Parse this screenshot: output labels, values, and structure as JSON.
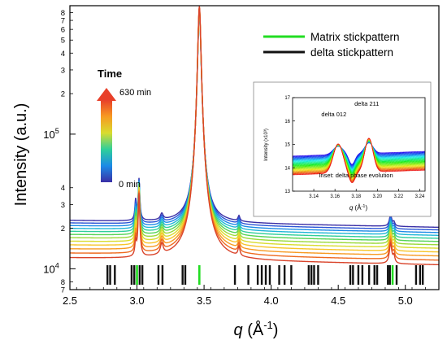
{
  "chart_data": [
    {
      "type": "line",
      "xlabel_italic": "q",
      "xlabel_rest": " (Å",
      "xlabel_sup": "-1",
      "xlabel_close": ")",
      "ylabel": "Intensity (a.u.)",
      "xlim": [
        2.5,
        5.25
      ],
      "ylim": [
        7000,
        900000
      ],
      "yscale": "log",
      "x_ticks": [
        "2.5",
        "3.0",
        "3.5",
        "4.0",
        "4.5",
        "5.0"
      ],
      "x_tick_values": [
        2.5,
        3.0,
        3.5,
        4.0,
        4.5,
        5.0
      ],
      "y_major_labels": [
        {
          "value": 10000,
          "mantissa": "10",
          "exp": "4"
        },
        {
          "value": 100000,
          "mantissa": "10",
          "exp": "5"
        }
      ],
      "y_minor_labels": [
        {
          "value": 7000,
          "label": "7"
        },
        {
          "value": 8000,
          "label": "8"
        },
        {
          "value": 20000,
          "label": "2"
        },
        {
          "value": 30000,
          "label": "3"
        },
        {
          "value": 40000,
          "label": "4"
        },
        {
          "value": 200000,
          "label": "2"
        },
        {
          "value": 300000,
          "label": "3"
        },
        {
          "value": 400000,
          "label": "4"
        },
        {
          "value": 500000,
          "label": "5"
        },
        {
          "value": 600000,
          "label": "6"
        },
        {
          "value": 700000,
          "label": "7"
        },
        {
          "value": 800000,
          "label": "8"
        }
      ],
      "series_count": 12,
      "series_colors": [
        "#3a2fa6",
        "#2b56d6",
        "#1c8be6",
        "#1fb6d6",
        "#2fcf9a",
        "#55d455",
        "#9bd93a",
        "#d9dc2f",
        "#f7c52a",
        "#f79a22",
        "#ee6a1f",
        "#d9432a"
      ],
      "baseline": 12000,
      "baseline_spread": 0.9,
      "peaks": [
        {
          "q": 2.99,
          "amp": 6000,
          "width": 0.006
        },
        {
          "q": 3.015,
          "amp": 24000,
          "width": 0.006
        },
        {
          "q": 3.185,
          "amp": 2600,
          "width": 0.012
        },
        {
          "q": 3.465,
          "amp": 880000,
          "width": 0.011
        },
        {
          "q": 3.76,
          "amp": 2200,
          "width": 0.008
        },
        {
          "q": 4.89,
          "amp": 4500,
          "width": 0.01
        },
        {
          "q": 4.915,
          "amp": 1500,
          "width": 0.008
        }
      ],
      "matrix_sticks": [
        3.0,
        3.465,
        4.905
      ],
      "delta_sticks": [
        2.78,
        2.8,
        2.835,
        2.96,
        2.98,
        3.02,
        3.04,
        3.16,
        3.19,
        3.34,
        3.36,
        3.73,
        3.83,
        3.9,
        3.93,
        3.96,
        3.99,
        4.06,
        4.1,
        4.15,
        4.28,
        4.3,
        4.32,
        4.35,
        4.59,
        4.61,
        4.65,
        4.68,
        4.73,
        4.77,
        4.79,
        4.87,
        4.885,
        4.935,
        5.08,
        5.11,
        5.13
      ],
      "legend": [
        {
          "name": "Matrix stickpattern",
          "color": "#22dd22"
        },
        {
          "name": "delta stickpattern",
          "color": "#111111"
        }
      ],
      "colorbar": {
        "title": "Time",
        "max_label": "630 min",
        "min_label": "0 min"
      }
    },
    {
      "type": "line",
      "title_inset": "Inset: delta phase evolution",
      "xlabel_italic": "q",
      "xlabel_rest": " (Å",
      "xlabel_sup": "-1",
      "xlabel_close": ")",
      "ylabel": "Intensity (x10³)",
      "xlim": [
        3.12,
        3.245
      ],
      "ylim": [
        13,
        17
      ],
      "x_ticks": [
        "3.14",
        "3.16",
        "3.18",
        "3.20",
        "3.22",
        "3.24"
      ],
      "x_tick_values": [
        3.14,
        3.16,
        3.18,
        3.2,
        3.22,
        3.24
      ],
      "y_ticks": [
        "13",
        "14",
        "15",
        "16",
        "17"
      ],
      "y_tick_values": [
        13,
        14,
        15,
        16,
        17
      ],
      "peak_labels": [
        {
          "text": "delta 012",
          "q": 3.159,
          "value": 16.2
        },
        {
          "text": "delta 211",
          "q": 3.19,
          "value": 16.65
        }
      ]
    }
  ]
}
